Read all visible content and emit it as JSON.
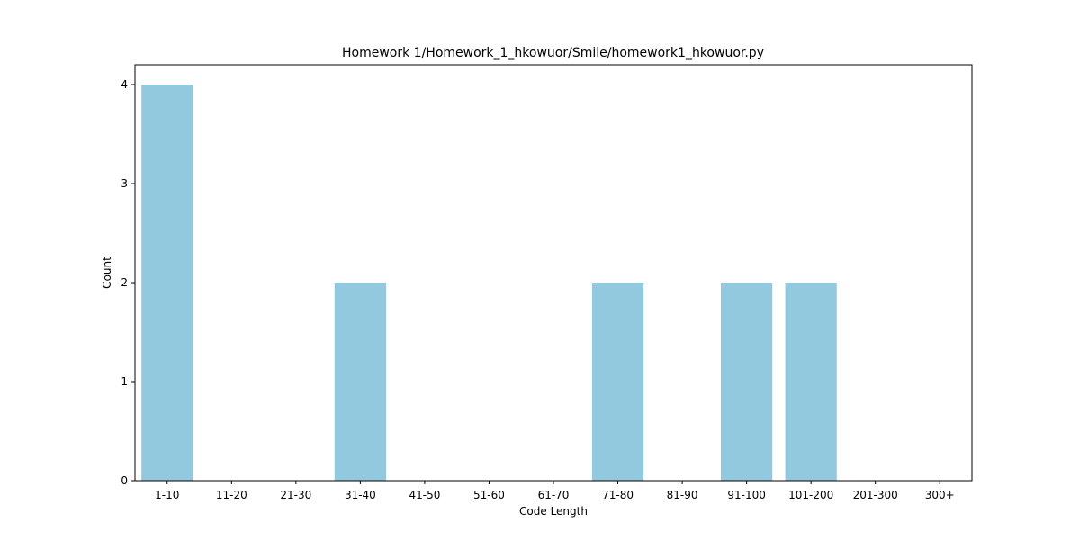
{
  "chart_data": {
    "type": "bar",
    "title": "Homework 1/Homework_1_hkowuor/Smile/homework1_hkowuor.py",
    "xlabel": "Code Length",
    "ylabel": "Count",
    "categories": [
      "1-10",
      "11-20",
      "21-30",
      "31-40",
      "41-50",
      "51-60",
      "61-70",
      "71-80",
      "81-90",
      "91-100",
      "101-200",
      "201-300",
      "300+"
    ],
    "values": [
      4,
      0,
      0,
      2,
      0,
      0,
      0,
      2,
      0,
      2,
      2,
      0,
      0
    ],
    "ylim": [
      0,
      4.2
    ],
    "yticks": [
      0,
      1,
      2,
      3,
      4
    ],
    "bar_color": "#92c9df",
    "grid": false,
    "legend": "none"
  }
}
